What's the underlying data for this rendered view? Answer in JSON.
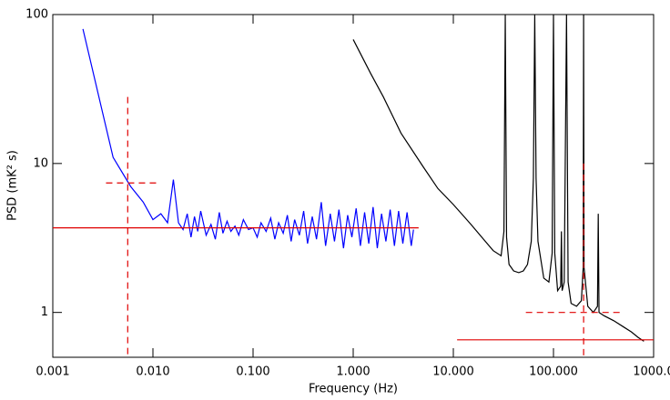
{
  "chart_data": {
    "type": "line",
    "xlabel": "Frequency (Hz)",
    "ylabel": "PSD (mK² s)",
    "xlog": true,
    "ylog": true,
    "xlim": [
      0.001,
      1000
    ],
    "ylim": [
      0.5,
      100
    ],
    "xticks": [
      {
        "value": 0.001,
        "label": "0.001"
      },
      {
        "value": 0.01,
        "label": "0.010"
      },
      {
        "value": 0.1,
        "label": "0.100"
      },
      {
        "value": 1,
        "label": "1.000"
      },
      {
        "value": 10,
        "label": "10.000"
      },
      {
        "value": 100,
        "label": "100.000"
      },
      {
        "value": 1000,
        "label": "1000.0"
      }
    ],
    "yticks": [
      1,
      10,
      100
    ],
    "series": [
      {
        "color": "#0000ff",
        "dash": false,
        "x": [
          0.002,
          0.004,
          0.006,
          0.008,
          0.01,
          0.012,
          0.014,
          0.016,
          0.018,
          0.02,
          0.022,
          0.024,
          0.026,
          0.028,
          0.03,
          0.034,
          0.038,
          0.042,
          0.046,
          0.05,
          0.055,
          0.06,
          0.066,
          0.072,
          0.08,
          0.09,
          0.1,
          0.11,
          0.12,
          0.135,
          0.15,
          0.165,
          0.18,
          0.2,
          0.22,
          0.24,
          0.26,
          0.29,
          0.32,
          0.35,
          0.39,
          0.43,
          0.48,
          0.53,
          0.59,
          0.65,
          0.72,
          0.8,
          0.88,
          0.97,
          1.07,
          1.18,
          1.3,
          1.43,
          1.58,
          1.74,
          1.92,
          2.12,
          2.34,
          2.58,
          2.84,
          3.13,
          3.45,
          3.8,
          4.0
        ],
        "values": [
          80,
          11,
          7,
          5.5,
          4.2,
          4.6,
          4.0,
          7.8,
          4.0,
          3.6,
          4.6,
          3.2,
          4.4,
          3.5,
          4.8,
          3.3,
          3.9,
          3.1,
          4.7,
          3.4,
          4.1,
          3.5,
          3.8,
          3.3,
          4.2,
          3.6,
          3.7,
          3.2,
          4.0,
          3.5,
          4.3,
          3.1,
          4.0,
          3.4,
          4.5,
          3.0,
          4.2,
          3.3,
          4.8,
          2.9,
          4.4,
          3.1,
          5.5,
          2.8,
          4.6,
          3.0,
          4.9,
          2.7,
          4.5,
          3.2,
          5.0,
          2.8,
          4.7,
          2.9,
          5.1,
          2.7,
          4.6,
          3.0,
          4.9,
          2.8,
          4.8,
          2.9,
          4.7,
          2.8,
          3.6
        ]
      },
      {
        "color": "#000000",
        "dash": false,
        "x": [
          1,
          1.5,
          2,
          3,
          5,
          7,
          10,
          15,
          20,
          25,
          30,
          32,
          33,
          34,
          36,
          40,
          45,
          50,
          55,
          60,
          63,
          65,
          67,
          70,
          80,
          90,
          97,
          100,
          103,
          110,
          118,
          120,
          122,
          128,
          135,
          140,
          150,
          170,
          190,
          198,
          200,
          202,
          220,
          250,
          275,
          280,
          285,
          320,
          400,
          500,
          600,
          700,
          800
        ],
        "values": [
          68,
          40,
          28,
          16,
          9.5,
          6.8,
          5.3,
          3.9,
          3.1,
          2.6,
          2.4,
          3.5,
          100,
          3.2,
          2.1,
          1.9,
          1.85,
          1.9,
          2.1,
          3.0,
          8,
          100,
          8,
          3.0,
          1.7,
          1.6,
          2.5,
          100,
          2.5,
          1.4,
          1.5,
          3.5,
          1.4,
          1.6,
          100,
          1.6,
          1.15,
          1.1,
          1.2,
          2,
          100,
          2,
          1.1,
          1.0,
          1.1,
          4.6,
          1.0,
          0.95,
          0.88,
          0.8,
          0.74,
          0.68,
          0.64
        ]
      },
      {
        "color": "#e00000",
        "dash": false,
        "x": [
          0.001,
          4.5
        ],
        "values": [
          3.7,
          3.7
        ]
      },
      {
        "color": "#e00000",
        "dash": true,
        "x": [
          0.0056,
          0.0056
        ],
        "values": [
          28,
          0.5
        ]
      },
      {
        "color": "#e00000",
        "dash": true,
        "x": [
          0.0034,
          0.0115
        ],
        "values": [
          7.4,
          7.4
        ]
      },
      {
        "color": "#e00000",
        "dash": false,
        "x": [
          10.9,
          1000
        ],
        "values": [
          0.655,
          0.655
        ]
      },
      {
        "color": "#e00000",
        "dash": true,
        "x": [
          200,
          200
        ],
        "values": [
          10,
          0.5
        ]
      },
      {
        "color": "#e00000",
        "dash": true,
        "x": [
          53,
          480
        ],
        "values": [
          1.0,
          1.0
        ]
      }
    ]
  }
}
